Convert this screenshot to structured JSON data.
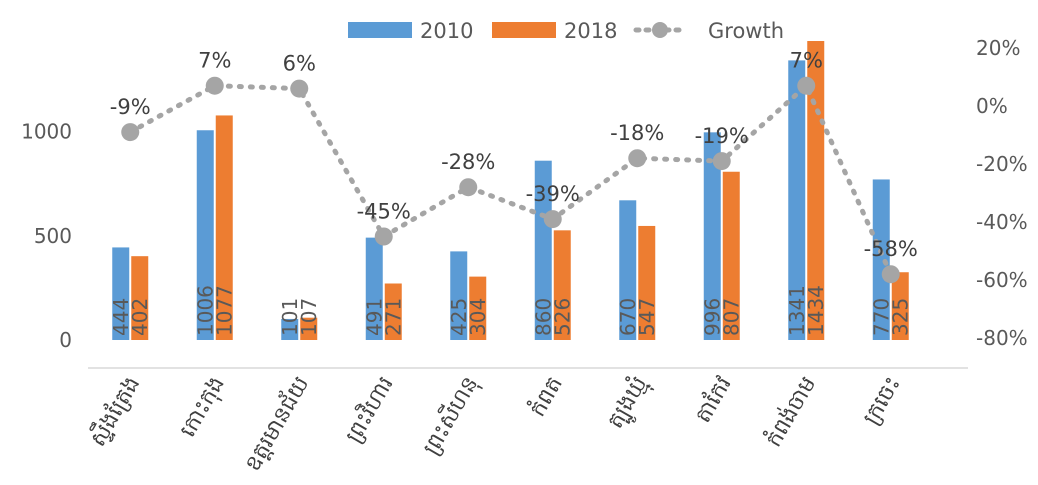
{
  "chart_data": {
    "type": "bar",
    "categories": [
      "ស្ទឹងត្រែង",
      "កោះកុង",
      "ឧត្តរមានជ័យ",
      "ព្រះវិហារ",
      "ព្រះសីហនុ",
      "កំពត",
      "ត្បូងឃ្មុំ",
      "តាកែវ",
      "កំពង់ចាម",
      "ក្រចេះ"
    ],
    "series": [
      {
        "name": "2010",
        "values": [
          444,
          1006,
          101,
          491,
          425,
          860,
          670,
          996,
          1341,
          770
        ],
        "color": "#5B9BD5"
      },
      {
        "name": "2018",
        "values": [
          402,
          1077,
          107,
          271,
          304,
          526,
          547,
          807,
          1434,
          325
        ],
        "color": "#ED7D31"
      }
    ],
    "growth": {
      "name": "Growth",
      "values": [
        -9,
        7,
        6,
        -45,
        -28,
        -39,
        -18,
        -19,
        7,
        -58
      ],
      "labels": [
        "-9%",
        "7%",
        "6%",
        "-45%",
        "-28%",
        "-39%",
        "-18%",
        "-19%",
        "7%",
        "-58%"
      ],
      "color": "#A5A5A5"
    },
    "y_ticks": [
      "0",
      "500",
      "1000"
    ],
    "y2_ticks": [
      "-80%",
      "-60%",
      "-40%",
      "-20%",
      "0%",
      "20%"
    ],
    "ylim": [
      0,
      1434
    ],
    "y2lim": [
      -80,
      20
    ],
    "legend_position": "top",
    "grid": false
  }
}
